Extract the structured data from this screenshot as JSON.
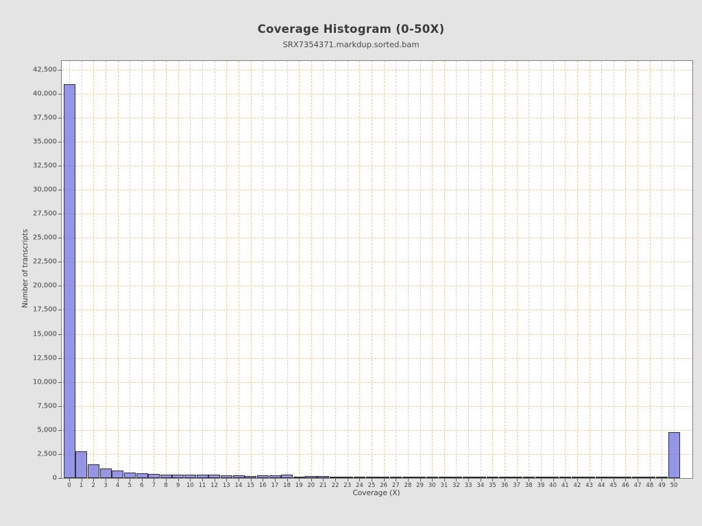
{
  "page": {
    "background": "#e4e4e4"
  },
  "chart_data": {
    "type": "bar",
    "title": "Coverage Histogram (0-50X)",
    "subtitle": "SRX7354371.markdup.sorted.bam",
    "xlabel": "Coverage (X)",
    "ylabel": "Number of transcripts",
    "x": [
      0,
      1,
      2,
      3,
      4,
      5,
      6,
      7,
      8,
      9,
      10,
      11,
      12,
      13,
      14,
      15,
      16,
      17,
      18,
      19,
      20,
      21,
      22,
      23,
      24,
      25,
      26,
      27,
      28,
      29,
      30,
      31,
      32,
      33,
      34,
      35,
      36,
      37,
      38,
      39,
      40,
      41,
      42,
      43,
      44,
      45,
      46,
      47,
      48,
      49,
      50
    ],
    "values": [
      41000,
      2800,
      1400,
      975,
      750,
      600,
      500,
      430,
      390,
      360,
      370,
      340,
      360,
      270,
      270,
      200,
      310,
      310,
      330,
      170,
      190,
      190,
      170,
      170,
      120,
      100,
      100,
      110,
      110,
      110,
      110,
      90,
      50,
      140,
      140,
      50,
      50,
      35,
      35,
      30,
      30,
      30,
      25,
      25,
      25,
      20,
      20,
      20,
      20,
      20,
      4800
    ],
    "xlim": [
      -0.62,
      51.6
    ],
    "ylim": [
      0,
      43400
    ],
    "y_ticks": [
      0,
      2500,
      5000,
      7500,
      10000,
      12500,
      15000,
      17500,
      20000,
      22500,
      25000,
      27500,
      30000,
      32500,
      35000,
      37500,
      40000,
      42500
    ],
    "x_ticks": [
      0,
      1,
      2,
      3,
      4,
      5,
      6,
      7,
      8,
      9,
      10,
      11,
      12,
      13,
      14,
      15,
      16,
      17,
      18,
      19,
      20,
      21,
      22,
      23,
      24,
      25,
      26,
      27,
      28,
      29,
      30,
      31,
      32,
      33,
      34,
      35,
      36,
      37,
      38,
      39,
      40,
      41,
      42,
      43,
      44,
      45,
      46,
      47,
      48,
      49,
      50
    ],
    "grid": {
      "horizontal": true,
      "vertical": true,
      "style": "dashed"
    },
    "legend": "none",
    "colors": {
      "page_bg": "#e4e4e4",
      "plot_bg": "#ffffff",
      "plot_border": "#7e7e7e",
      "gridline": "#f3c9a2",
      "bar_fill": "#9696e8",
      "bar_border": "#2d2d2d",
      "text": "#3d3d3d"
    }
  }
}
